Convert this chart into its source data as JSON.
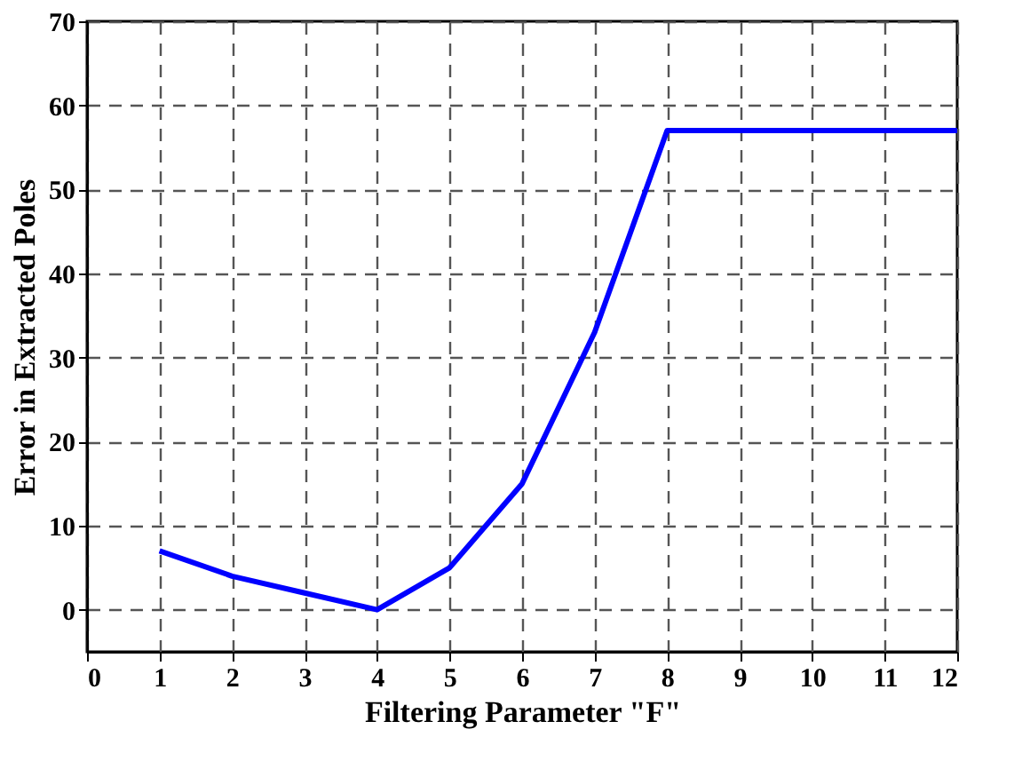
{
  "chart_data": {
    "type": "line",
    "xlabel": "Filtering Parameter \"F\"",
    "ylabel": "Error in Extracted Poles",
    "x": [
      1,
      2,
      3,
      4,
      5,
      6,
      7,
      8,
      12
    ],
    "series": [
      {
        "color": "#0000ff",
        "values": [
          7,
          4,
          2,
          0,
          5,
          15,
          33,
          57,
          57
        ]
      }
    ],
    "xlim": [
      0,
      12
    ],
    "xticks": [
      0,
      1,
      2,
      3,
      4,
      5,
      6,
      7,
      8,
      9,
      10,
      11,
      12
    ],
    "ylim": [
      -5,
      70
    ],
    "yticks": [
      0,
      10,
      20,
      30,
      40,
      50,
      60,
      70
    ],
    "grid": true,
    "marker": "none",
    "line_style": "solid"
  }
}
